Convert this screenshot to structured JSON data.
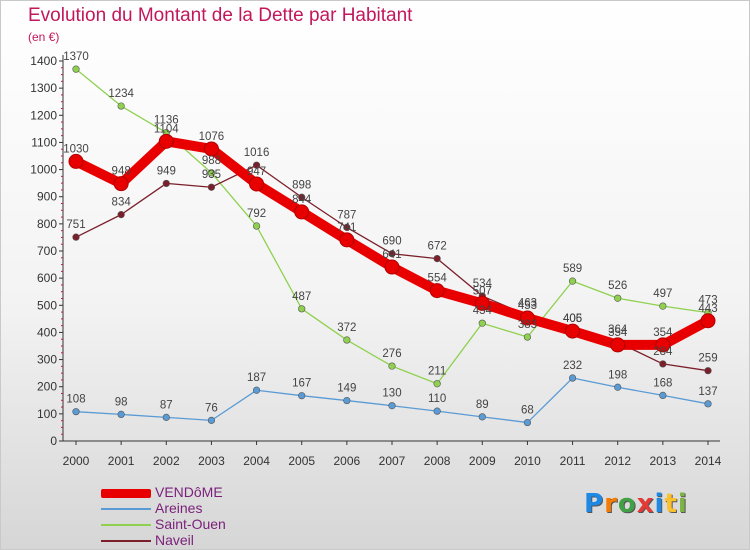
{
  "title": "Evolution du Montant de la Dette par Habitant",
  "unit_label": "(en €)",
  "logo_text": "Proxiti",
  "chart_data": {
    "type": "line",
    "x": [
      "2000",
      "2001",
      "2002",
      "2003",
      "2004",
      "2005",
      "2006",
      "2007",
      "2008",
      "2009",
      "2010",
      "2011",
      "2012",
      "2013",
      "2014"
    ],
    "yticks": [
      "0",
      "100",
      "200",
      "300",
      "400",
      "500",
      "600",
      "700",
      "800",
      "900",
      "1000",
      "1100",
      "1200",
      "1300",
      "1400"
    ],
    "ylim": [
      0,
      1400
    ],
    "grid": false,
    "legend_position": "bottom-left",
    "series": [
      {
        "name": "VENDôME",
        "color": "#e80000",
        "values": [
          1030,
          948,
          1104,
          1076,
          947,
          844,
          741,
          641,
          554,
          507,
          453,
          405,
          354,
          354,
          443
        ],
        "labels": [
          "1030",
          "948",
          "1104",
          "1076",
          "947",
          "844",
          "741",
          "641",
          "554",
          "507",
          "453",
          "405",
          "354",
          "354",
          "443"
        ]
      },
      {
        "name": "Areines",
        "color": "#5b9bd5",
        "values": [
          108,
          98,
          87,
          76,
          187,
          167,
          149,
          130,
          110,
          89,
          68,
          232,
          198,
          168,
          137
        ],
        "labels": [
          "108",
          "98",
          "87",
          "76",
          "187",
          "167",
          "149",
          "130",
          "110",
          "89",
          "68",
          "232",
          "198",
          "168",
          "137"
        ]
      },
      {
        "name": "Saint-Ouen",
        "color": "#8fd14f",
        "values": [
          1370,
          1234,
          1136,
          988,
          792,
          487,
          372,
          276,
          211,
          434,
          383,
          589,
          526,
          497,
          473
        ],
        "labels": [
          "1370",
          "1234",
          "1136",
          "988",
          "792",
          "487",
          "372",
          "276",
          "211",
          "434",
          "383",
          "589",
          "526",
          "497",
          "473"
        ]
      },
      {
        "name": "Naveil",
        "color": "#7b1f2a",
        "values": [
          751,
          834,
          949,
          935,
          1016,
          898,
          787,
          690,
          672,
          534,
          463,
          406,
          364,
          284,
          259
        ],
        "labels": [
          "751",
          "834",
          "949",
          "935",
          "1016",
          "898",
          "787",
          "690",
          "672",
          "534",
          "463",
          "406",
          "364",
          "284",
          "259"
        ]
      }
    ]
  }
}
